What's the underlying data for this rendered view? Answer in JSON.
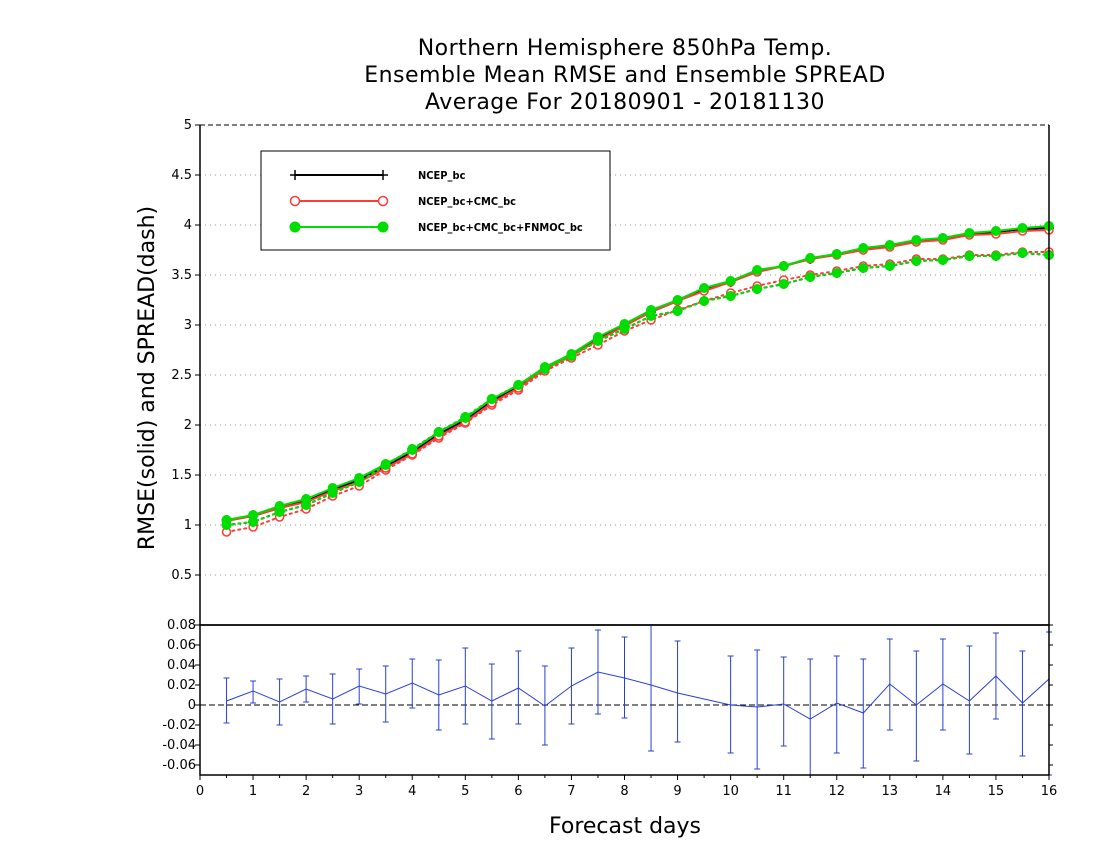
{
  "title": {
    "line1": "Northern Hemisphere 850hPa Temp.",
    "line2": "Ensemble Mean RMSE and Ensemble SPREAD",
    "line3": "Average For 20180901 - 20181130"
  },
  "chart_data": [
    {
      "type": "line",
      "title": "Northern Hemisphere 850hPa Temp. Ensemble Mean RMSE and Ensemble SPREAD Average For 20180901 - 20181130",
      "xlabel": "",
      "ylabel": "RMSE(solid) and SPREAD(dash)",
      "xlim": [
        0,
        16
      ],
      "ylim": [
        0,
        5
      ],
      "yticks": [
        "0.5",
        "1",
        "1.5",
        "2",
        "2.5",
        "3",
        "3.5",
        "4",
        "4.5",
        "5"
      ],
      "grid": true,
      "legend_position": "top-left",
      "x": [
        0.5,
        1,
        1.5,
        2,
        2.5,
        3,
        3.5,
        4,
        4.5,
        5,
        5.5,
        6,
        6.5,
        7,
        7.5,
        8,
        8.5,
        9,
        9.5,
        10,
        10.5,
        11,
        11.5,
        12,
        12.5,
        13,
        13.5,
        14,
        14.5,
        15,
        15.5,
        16
      ],
      "series": [
        {
          "name": "NCEP_bc",
          "color": "#000000",
          "marker": "plus",
          "rmse": [
            1.05,
            1.09,
            1.17,
            1.24,
            1.35,
            1.45,
            1.59,
            1.73,
            1.91,
            2.05,
            2.24,
            2.39,
            2.57,
            2.7,
            2.87,
            3.0,
            3.13,
            3.24,
            3.36,
            3.43,
            3.54,
            3.59,
            3.66,
            3.71,
            3.76,
            3.79,
            3.84,
            3.86,
            3.91,
            3.93,
            3.96,
            3.97
          ],
          "spread": [
            1.0,
            1.03,
            1.13,
            1.2,
            1.32,
            1.43,
            1.6,
            1.76,
            1.93,
            2.08,
            2.26,
            2.4,
            2.56,
            2.69,
            2.84,
            2.96,
            3.09,
            3.14,
            3.24,
            3.29,
            3.36,
            3.41,
            3.48,
            3.52,
            3.57,
            3.59,
            3.64,
            3.65,
            3.69,
            3.69,
            3.72,
            3.7
          ]
        },
        {
          "name": "NCEP_bc+CMC_bc",
          "color": "#ff3b3b",
          "marker": "open-circle",
          "rmse": [
            1.04,
            1.09,
            1.17,
            1.23,
            1.34,
            1.43,
            1.57,
            1.71,
            1.89,
            2.03,
            2.22,
            2.37,
            2.56,
            2.69,
            2.85,
            2.99,
            3.13,
            3.24,
            3.34,
            3.43,
            3.53,
            3.59,
            3.66,
            3.7,
            3.75,
            3.78,
            3.83,
            3.85,
            3.9,
            3.91,
            3.94,
            3.95
          ],
          "spread": [
            0.93,
            0.98,
            1.08,
            1.16,
            1.29,
            1.39,
            1.55,
            1.7,
            1.87,
            2.02,
            2.2,
            2.35,
            2.54,
            2.67,
            2.8,
            2.94,
            3.05,
            3.15,
            3.24,
            3.32,
            3.39,
            3.45,
            3.5,
            3.54,
            3.59,
            3.61,
            3.66,
            3.66,
            3.7,
            3.7,
            3.73,
            3.73
          ]
        },
        {
          "name": "NCEP_bc+CMC_bc+FNMOC_bc",
          "color": "#00dd00",
          "marker": "filled-circle",
          "rmse": [
            1.05,
            1.1,
            1.19,
            1.26,
            1.37,
            1.47,
            1.61,
            1.75,
            1.93,
            2.07,
            2.26,
            2.4,
            2.58,
            2.71,
            2.88,
            3.01,
            3.15,
            3.25,
            3.37,
            3.44,
            3.55,
            3.59,
            3.67,
            3.71,
            3.77,
            3.8,
            3.85,
            3.87,
            3.92,
            3.94,
            3.97,
            3.99
          ],
          "spread": [
            1.0,
            1.03,
            1.13,
            1.2,
            1.32,
            1.43,
            1.6,
            1.76,
            1.93,
            2.08,
            2.26,
            2.4,
            2.56,
            2.69,
            2.84,
            2.96,
            3.09,
            3.14,
            3.24,
            3.29,
            3.36,
            3.41,
            3.48,
            3.52,
            3.57,
            3.59,
            3.64,
            3.65,
            3.69,
            3.69,
            3.72,
            3.7
          ]
        }
      ]
    },
    {
      "type": "line",
      "xlabel": "Forecast days",
      "xlim": [
        0,
        16
      ],
      "xticks": [
        "0",
        "1",
        "2",
        "3",
        "4",
        "5",
        "6",
        "7",
        "8",
        "9",
        "10",
        "11",
        "12",
        "13",
        "14",
        "15",
        "16"
      ],
      "ylim": [
        -0.07,
        0.08
      ],
      "yticks": [
        "-0.06",
        "-0.04",
        "-0.02",
        "0",
        "0.02",
        "0.04",
        "0.06",
        "0.08"
      ],
      "reference_line": 0,
      "series": [
        {
          "color": "#2a3fd6",
          "x": [
            0.5,
            1,
            1.5,
            2,
            2.5,
            3,
            3.5,
            4,
            4.5,
            5,
            5.5,
            6,
            6.5,
            7,
            7.5,
            8,
            8.5,
            9,
            10,
            10.5,
            11,
            11.5,
            12,
            12.5,
            13,
            13.5,
            14,
            14.5,
            15,
            15.5,
            16
          ],
          "values": [
            0.004,
            0.014,
            0.003,
            0.016,
            0.006,
            0.019,
            0.011,
            0.022,
            0.01,
            0.019,
            0.004,
            0.017,
            -0.001,
            0.019,
            0.033,
            0.027,
            0.02,
            0.012,
            0.0,
            -0.002,
            0.001,
            -0.014,
            0.002,
            -0.008,
            0.021,
            0.0,
            0.021,
            0.004,
            0.029,
            0.002,
            0.026
          ],
          "lower": [
            -0.018,
            0.002,
            -0.02,
            0.003,
            -0.019,
            0.001,
            -0.017,
            -0.003,
            -0.025,
            -0.019,
            -0.034,
            -0.019,
            -0.04,
            -0.019,
            -0.009,
            -0.013,
            -0.046,
            -0.037,
            -0.048,
            -0.064,
            -0.041,
            -0.07,
            -0.048,
            -0.063,
            -0.025,
            -0.056,
            -0.025,
            -0.049,
            -0.014,
            -0.051,
            -0.07
          ],
          "upper": [
            0.027,
            0.024,
            0.026,
            0.029,
            0.031,
            0.036,
            0.039,
            0.046,
            0.045,
            0.057,
            0.041,
            0.054,
            0.039,
            0.057,
            0.075,
            0.068,
            0.081,
            0.064,
            0.049,
            0.055,
            0.048,
            0.046,
            0.049,
            0.046,
            0.066,
            0.054,
            0.066,
            0.059,
            0.072,
            0.054,
            0.073
          ]
        }
      ]
    }
  ]
}
